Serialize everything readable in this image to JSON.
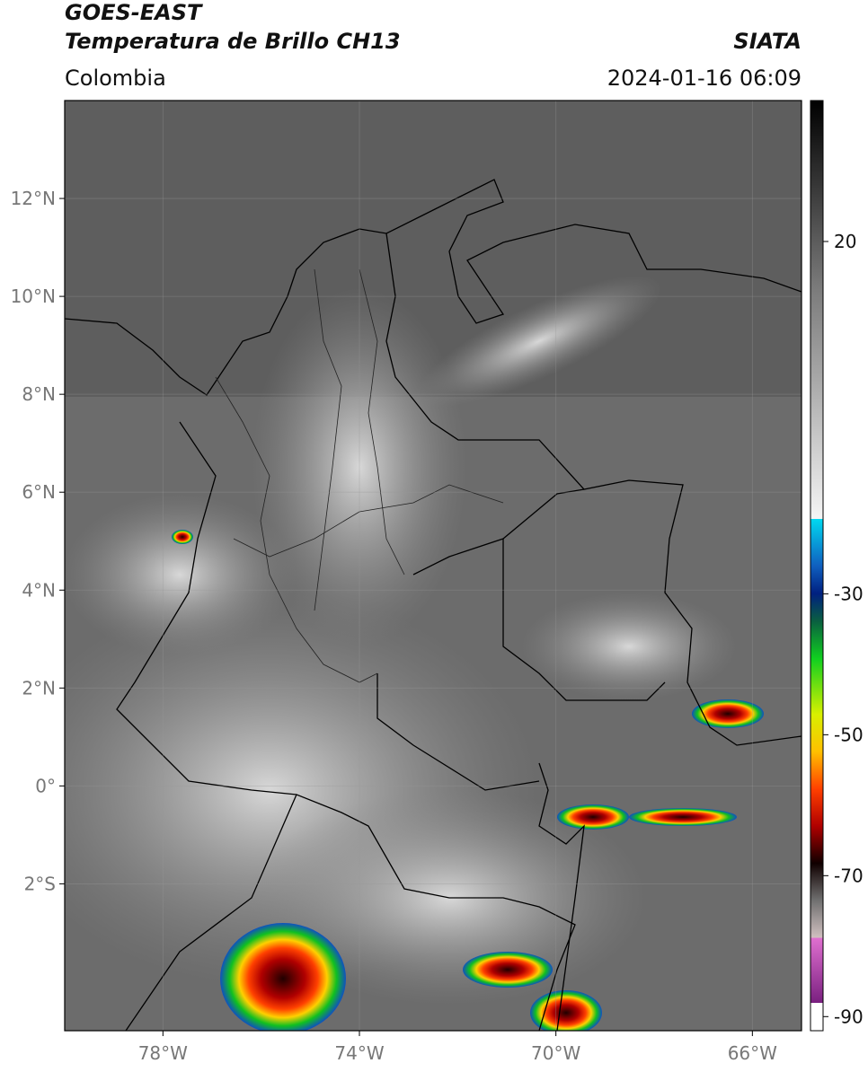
{
  "header": {
    "title": "GOES-EAST",
    "subtitle": "Temperatura de Brillo CH13",
    "source": "SIATA",
    "region": "Colombia",
    "datetime": "2024-01-16 06:09"
  },
  "map": {
    "xlim": [
      -80,
      -65
    ],
    "ylim": [
      -5,
      14
    ],
    "xticks": [
      {
        "value": -78,
        "label": "78°W"
      },
      {
        "value": -74,
        "label": "74°W"
      },
      {
        "value": -70,
        "label": "70°W"
      },
      {
        "value": -66,
        "label": "66°W"
      }
    ],
    "yticks": [
      {
        "value": 12,
        "label": "12°N"
      },
      {
        "value": 10,
        "label": "10°N"
      },
      {
        "value": 8,
        "label": "8°N"
      },
      {
        "value": 6,
        "label": "6°N"
      },
      {
        "value": 4,
        "label": "4°N"
      },
      {
        "value": 2,
        "label": "2°N"
      },
      {
        "value": 0,
        "label": "0°"
      },
      {
        "value": -2,
        "label": "2°S"
      }
    ],
    "grid": true
  },
  "colorbar": {
    "lim": [
      -92,
      40
    ],
    "ticks": [
      20,
      -30,
      -50,
      -70,
      -90
    ]
  }
}
